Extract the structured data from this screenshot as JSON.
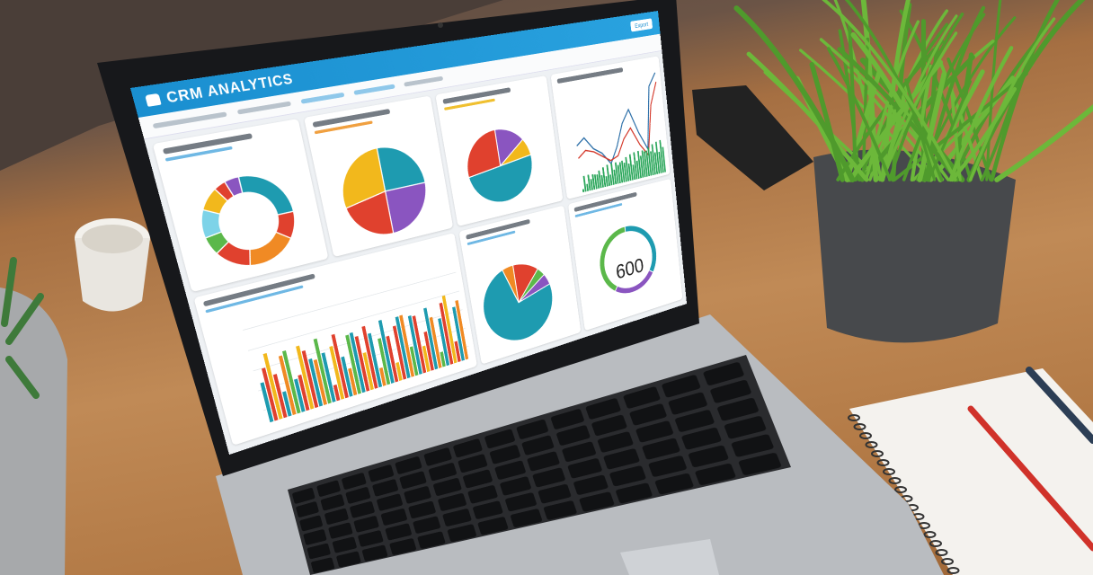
{
  "dashboard": {
    "title": "CRM ANALYTICS",
    "header_button": "Export",
    "gauge_value": "600",
    "colors": {
      "header": "#1a8fd0",
      "teal": "#1e9bb0",
      "red": "#e0412e",
      "yellow": "#f2b81c",
      "purple": "#8a55c0",
      "green": "#5bb84a",
      "orange": "#f08a24"
    }
  }
}
